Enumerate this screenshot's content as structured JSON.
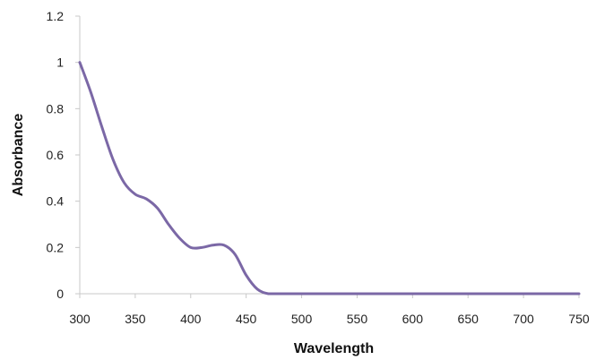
{
  "chart_data": {
    "type": "line",
    "title": "",
    "xlabel": "Wavelength",
    "ylabel": "Absorbance",
    "xlim": [
      300,
      750
    ],
    "ylim": [
      0,
      1.2
    ],
    "x_ticks": [
      300,
      350,
      400,
      450,
      500,
      550,
      600,
      650,
      700,
      750
    ],
    "x_tick_labels": [
      "300",
      "350",
      "400",
      "450",
      "500",
      "550",
      "600",
      "650",
      "700",
      "750"
    ],
    "y_ticks": [
      0,
      0.2,
      0.4,
      0.6,
      0.8,
      1,
      1.2
    ],
    "y_tick_labels": [
      "0",
      "0.2",
      "0.4",
      "0.6",
      "0.8",
      "1",
      "1.2"
    ],
    "grid": false,
    "legend": "none",
    "series": [
      {
        "color": "#7b68a6",
        "x": [
          300,
          310,
          320,
          330,
          340,
          350,
          360,
          370,
          380,
          390,
          400,
          410,
          420,
          430,
          440,
          450,
          460,
          470,
          480,
          500,
          550,
          600,
          650,
          700,
          750
        ],
        "y": [
          1.0,
          0.87,
          0.72,
          0.58,
          0.48,
          0.43,
          0.41,
          0.37,
          0.3,
          0.24,
          0.2,
          0.2,
          0.21,
          0.21,
          0.17,
          0.08,
          0.02,
          0.0,
          0.0,
          0.0,
          0.0,
          0.0,
          0.0,
          0.0,
          0.0
        ]
      }
    ]
  }
}
